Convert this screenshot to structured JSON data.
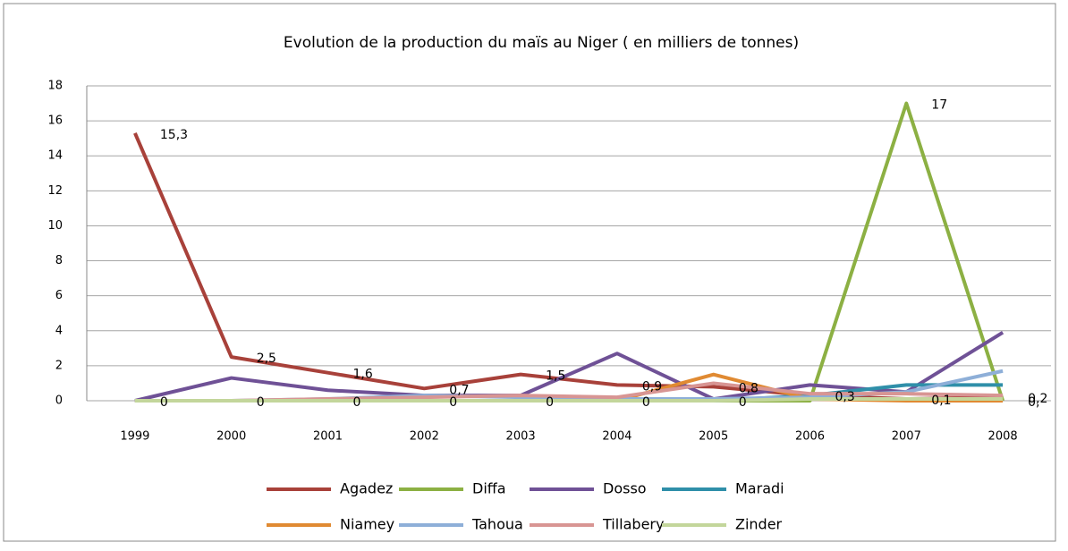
{
  "chart_data": {
    "type": "line",
    "title": "Evolution de la production du maïs au Niger ( en milliers de tonnes)",
    "categories": [
      "1999",
      "2000",
      "2001",
      "2002",
      "2003",
      "2004",
      "2005",
      "2006",
      "2007",
      "2008"
    ],
    "ylim": [
      0,
      18
    ],
    "yticks": [
      0,
      2,
      4,
      6,
      8,
      10,
      12,
      14,
      16,
      18
    ],
    "grid": true,
    "legend": "bottom",
    "series": [
      {
        "name": "Agadez",
        "color": "#a8413a",
        "values": [
          15.3,
          2.5,
          1.6,
          0.7,
          1.5,
          0.9,
          0.8,
          0.3,
          0.1,
          0.2
        ],
        "value_labels": [
          "15,3",
          "2,5",
          "1,6",
          "0,7",
          "1,5",
          "0,9",
          "0,8",
          "0,3",
          "0,1",
          "0,2"
        ]
      },
      {
        "name": "Diffa",
        "color": "#8cb043",
        "values": [
          0,
          0,
          0,
          0,
          0,
          0,
          0,
          0,
          17,
          0
        ],
        "value_labels": [
          "0",
          "0",
          "0",
          "0",
          "0",
          "0",
          "0",
          null,
          "17",
          "0,"
        ]
      },
      {
        "name": "Dosso",
        "color": "#6f5196",
        "values": [
          0,
          1.3,
          0.6,
          0.3,
          0.3,
          2.7,
          0.1,
          0.9,
          0.5,
          3.9
        ]
      },
      {
        "name": "Maradi",
        "color": "#2f8fa9",
        "values": [
          0,
          0,
          0,
          0,
          0,
          0,
          0,
          0.3,
          0.9,
          0.9
        ]
      },
      {
        "name": "Niamey",
        "color": "#e08a32",
        "values": [
          0,
          0,
          0,
          0,
          0,
          0,
          1.5,
          0.1,
          0,
          0
        ]
      },
      {
        "name": "Tahoua",
        "color": "#8eafd8",
        "values": [
          0,
          0,
          0.1,
          0.3,
          0.2,
          0.1,
          0.1,
          0.2,
          0.5,
          1.7
        ]
      },
      {
        "name": "Tillabery",
        "color": "#d89593",
        "values": [
          0,
          0,
          0.1,
          0.2,
          0.3,
          0.2,
          1.0,
          0.4,
          0.4,
          0.3
        ]
      },
      {
        "name": "Zinder",
        "color": "#c3d69b",
        "values": [
          0,
          0,
          0,
          0,
          0,
          0,
          0,
          0.1,
          0.1,
          0.1
        ]
      }
    ]
  }
}
